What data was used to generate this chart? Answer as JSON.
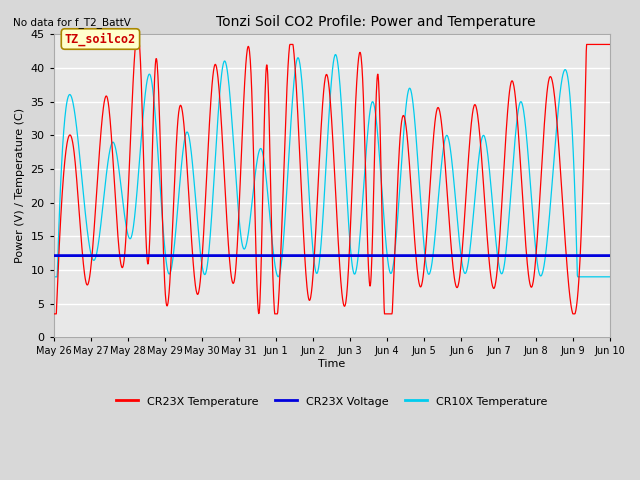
{
  "title": "Tonzi Soil CO2 Profile: Power and Temperature",
  "top_left_note": "No data for f_T2_BattV",
  "ylabel": "Power (V) / Temperature (C)",
  "xlabel": "Time",
  "ylim": [
    0,
    45
  ],
  "background_color": "#d8d8d8",
  "plot_bg_color": "#e8e8e8",
  "legend_label_box": "TZ_soilco2",
  "x_tick_labels": [
    "May 26",
    "May 27",
    "May 28",
    "May 29",
    "May 30",
    "May 31",
    "Jun 1",
    "Jun 2",
    "Jun 3",
    "Jun 4",
    "Jun 5",
    "Jun 6",
    "Jun 7",
    "Jun 8",
    "Jun 9",
    "Jun 10"
  ],
  "cr23x_temp_color": "#ff0000",
  "cr23x_volt_color": "#0000dd",
  "cr10x_temp_color": "#00ccee",
  "voltage_value": 12.15,
  "cr23x_peaks_x": [
    0.35,
    0.55,
    1.45,
    2.35,
    2.75,
    3.35,
    4.35,
    5.35,
    5.75,
    6.35,
    7.35,
    8.35,
    8.75,
    9.35,
    10.35,
    11.35,
    12.35,
    13.35,
    14.35
  ],
  "cr23x_peaks_y": [
    28.5,
    27.5,
    35.5,
    39.8,
    41.0,
    32.2,
    40.5,
    35.5,
    40.5,
    42.5,
    39.0,
    36.5,
    39.0,
    30.0,
    34.0,
    34.5,
    38.0,
    38.0,
    37.5
  ],
  "cr23x_troughs_x": [
    0.1,
    0.9,
    1.9,
    2.55,
    3.0,
    3.9,
    4.9,
    5.55,
    5.9,
    6.9,
    7.9,
    8.55,
    8.9,
    9.9,
    10.9,
    11.9,
    12.9,
    13.9
  ],
  "cr23x_troughs_y": [
    7.5,
    7.8,
    11.5,
    11.0,
    7.5,
    6.5,
    9.5,
    4.0,
    11.5,
    5.5,
    6.0,
    8.0,
    7.5,
    7.5,
    7.5,
    7.5,
    7.5,
    7.5
  ],
  "cr10x_peaks_x": [
    0.6,
    1.6,
    2.6,
    3.6,
    4.6,
    5.6,
    6.6,
    7.6,
    8.6,
    9.6,
    10.6,
    11.6,
    12.6,
    13.6
  ],
  "cr10x_peaks_y": [
    32.0,
    29.0,
    39.0,
    30.5,
    41.0,
    28.0,
    41.5,
    42.0,
    35.0,
    37.0,
    30.0,
    30.0,
    35.0,
    33.0
  ],
  "cr10x_troughs_x": [
    0.1,
    1.1,
    2.1,
    3.1,
    4.1,
    5.1,
    6.1,
    7.1,
    8.1,
    9.1,
    10.1,
    11.1,
    12.1,
    13.1,
    14.1
  ],
  "cr10x_troughs_y": [
    10.0,
    11.5,
    15.0,
    9.5,
    9.5,
    13.5,
    9.5,
    9.5,
    9.5,
    9.5,
    9.5,
    9.5,
    9.5,
    9.5,
    15.0
  ]
}
